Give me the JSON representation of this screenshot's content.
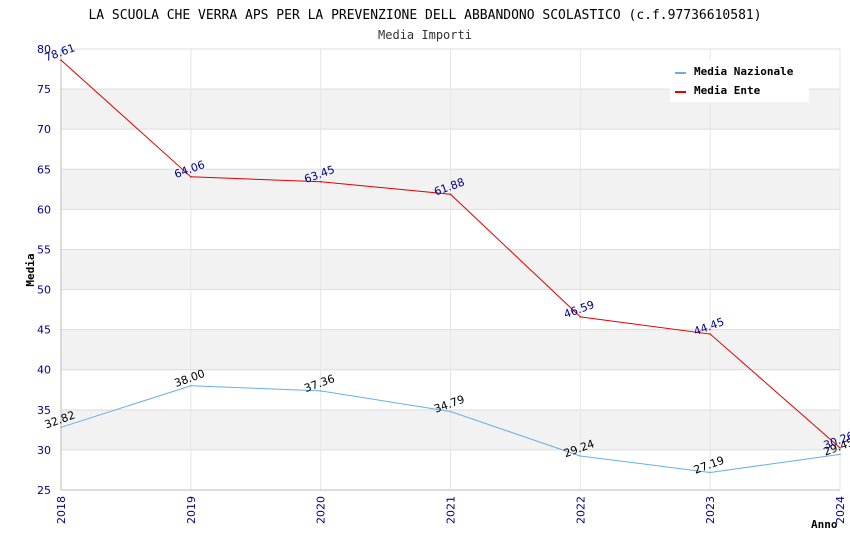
{
  "chart_data": {
    "type": "line",
    "title": "LA SCUOLA CHE VERRA APS PER LA PREVENZIONE DELL ABBANDONO SCOLASTICO (c.f.97736610581)",
    "subtitle": "Media Importi",
    "xlabel": "Anno",
    "ylabel": "Media",
    "categories": [
      "2018",
      "2019",
      "2020",
      "2021",
      "2022",
      "2023",
      "2024"
    ],
    "ylim": [
      25,
      80
    ],
    "yticks": [
      25,
      30,
      35,
      40,
      45,
      50,
      55,
      60,
      65,
      70,
      75,
      80
    ],
    "grid": true,
    "legend_position": "top-right",
    "series": [
      {
        "name": "Media Nazionale",
        "color": "#6aaee8",
        "values": [
          32.82,
          38.0,
          37.36,
          34.79,
          29.24,
          27.19,
          29.45
        ],
        "labels": [
          "32.82",
          "38.00",
          "37.36",
          "34.79",
          "29.24",
          "27.19",
          "29.45"
        ]
      },
      {
        "name": "Media Ente",
        "color": "#e00000",
        "values": [
          78.61,
          64.06,
          63.45,
          61.88,
          46.59,
          44.45,
          30.26
        ],
        "labels": [
          "78.61",
          "64.06",
          "63.45",
          "61.88",
          "46.59",
          "44.45",
          "30.26"
        ]
      }
    ]
  }
}
